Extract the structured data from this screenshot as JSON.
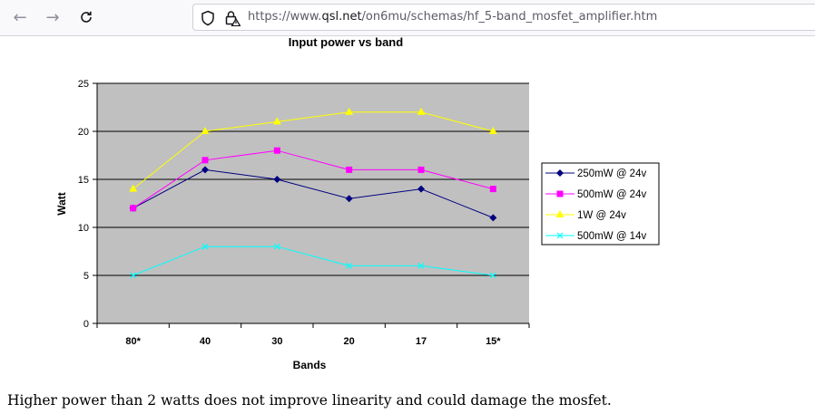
{
  "browser": {
    "url_prefix": "https://www.",
    "url_host": "qsl.net",
    "url_path": "/on6mu/schemas/hf_5-band_mosfet_amplifier.htm",
    "back_icon": "arrow-left-icon",
    "forward_icon": "arrow-right-icon",
    "reload_icon": "reload-icon",
    "security_icons": [
      "shield-icon",
      "lock-warning-icon"
    ]
  },
  "chart_data": {
    "type": "line",
    "title": "Input power vs band",
    "xlabel": "Bands",
    "ylabel": "Watt",
    "categories": [
      "80*",
      "40",
      "30",
      "20",
      "17",
      "15*"
    ],
    "ylim": [
      0,
      25
    ],
    "yticks": [
      0,
      5,
      10,
      15,
      20,
      25
    ],
    "grid": true,
    "legend_position": "right",
    "plot_background": "#c0c0c0",
    "series": [
      {
        "name": "250mW @ 24v",
        "values": [
          12,
          16,
          15,
          13,
          14,
          11
        ],
        "color": "#000080",
        "marker": "diamond"
      },
      {
        "name": "500mW @ 24v",
        "values": [
          12,
          17,
          18,
          16,
          16,
          14
        ],
        "color": "#ff00ff",
        "marker": "square"
      },
      {
        "name": "1W @ 24v",
        "values": [
          14,
          20,
          21,
          22,
          22,
          20
        ],
        "color": "#ffff00",
        "marker": "triangle"
      },
      {
        "name": "500mW @ 14v",
        "values": [
          5,
          8,
          8,
          6,
          6,
          5
        ],
        "color": "#00ffff",
        "marker": "x"
      }
    ]
  },
  "caption": "Higher power than 2 watts does not improve linearity and could damage the mosfet."
}
